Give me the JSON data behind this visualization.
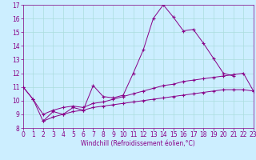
{
  "x_values": [
    0,
    1,
    2,
    3,
    4,
    5,
    6,
    7,
    8,
    9,
    10,
    11,
    12,
    13,
    14,
    15,
    16,
    17,
    18,
    19,
    20,
    21,
    22,
    23
  ],
  "line1": [
    11.0,
    10.1,
    8.5,
    9.2,
    9.0,
    9.5,
    9.3,
    11.1,
    10.3,
    10.2,
    10.4,
    12.0,
    13.7,
    16.0,
    17.0,
    16.1,
    15.1,
    15.2,
    14.2,
    13.1,
    12.0,
    11.8,
    null,
    null
  ],
  "line2": [
    11.0,
    10.1,
    9.0,
    9.3,
    9.5,
    9.6,
    9.5,
    9.8,
    9.9,
    10.1,
    10.3,
    10.5,
    10.7,
    10.9,
    11.1,
    11.2,
    11.4,
    11.5,
    11.6,
    11.7,
    11.8,
    11.9,
    12.0,
    10.7
  ],
  "line3": [
    null,
    null,
    8.5,
    8.8,
    9.0,
    9.2,
    9.3,
    9.5,
    9.6,
    9.7,
    9.8,
    9.9,
    10.0,
    10.1,
    10.2,
    10.3,
    10.4,
    10.5,
    10.6,
    10.7,
    10.8,
    10.8,
    10.8,
    10.7
  ],
  "line_color": "#880088",
  "bg_color": "#cceeff",
  "grid_color": "#aadddd",
  "xlabel": "Windchill (Refroidissement éolien,°C)",
  "xlim": [
    0,
    23
  ],
  "ylim": [
    8,
    17
  ],
  "yticks": [
    8,
    9,
    10,
    11,
    12,
    13,
    14,
    15,
    16,
    17
  ],
  "xticks": [
    0,
    1,
    2,
    3,
    4,
    5,
    6,
    7,
    8,
    9,
    10,
    11,
    12,
    13,
    14,
    15,
    16,
    17,
    18,
    19,
    20,
    21,
    22,
    23
  ],
  "xlabel_fontsize": 5.5,
  "tick_fontsize": 5.5,
  "linewidth": 0.7,
  "marker": "+",
  "markersize": 3.0,
  "markeredgewidth": 0.8
}
